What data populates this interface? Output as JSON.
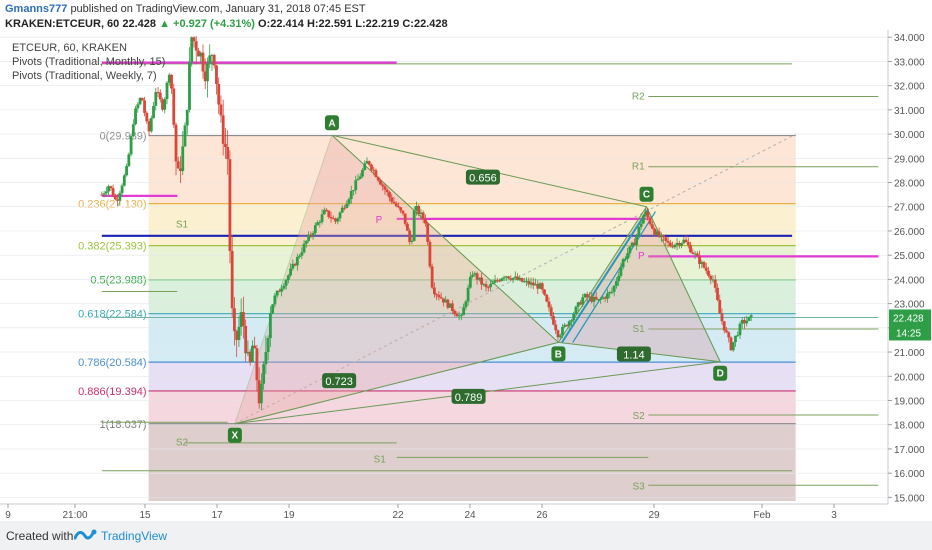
{
  "header": {
    "author": "Gmanns777",
    "published_text": "published on TradingView.com, January 31, 2018 07:45 EST",
    "symbol_line": "KRAKEN:ETCEUR, 60",
    "last": "22.428",
    "change": "▲ +0.927 (+4.31%)",
    "ohlc": "O:22.414 H:22.591 L:22.219 C:22.428"
  },
  "footer": {
    "created_with": "Created with",
    "brand": "TradingView"
  },
  "chart_data": {
    "type": "candlestick",
    "legend": [
      "ETCEUR, 60, KRAKEN",
      "Pivots (Traditional, Monthly, 15)",
      "Pivots (Traditional, Weekly, 7)"
    ],
    "x_ticks": [
      "9",
      "21:00",
      "15",
      "17",
      "19",
      "22",
      "24",
      "26",
      "29",
      "Feb",
      "3"
    ],
    "y_ticks": [
      "15.000",
      "16.000",
      "17.000",
      "18.000",
      "19.000",
      "20.000",
      "21.000",
      "22.000",
      "23.000",
      "24.000",
      "25.000",
      "26.000",
      "27.000",
      "28.000",
      "29.000",
      "30.000",
      "31.000",
      "32.000",
      "33.000",
      "34.000"
    ],
    "ylim": [
      14.85,
      34.05
    ],
    "last_price": "22.428",
    "countdown": "14:25",
    "colors": {
      "up": "#2e9e46",
      "down": "#d9463a",
      "pattern_line": "#6a9a55",
      "pivot_magenta": "#e23bd3",
      "support_blue": "#1a22b5",
      "channel_teal": "#2598b8"
    },
    "fib_levels": [
      {
        "label": "0(29.939)",
        "value": 29.939,
        "color": "#8c8c8c",
        "fill": "#fde3d2"
      },
      {
        "label": "0.236(27.130)",
        "value": 27.13,
        "color": "#e8b14a",
        "fill": "#fbf0cc"
      },
      {
        "label": "0.382(25.393)",
        "value": 25.393,
        "color": "#9bc43a",
        "fill": "#e4f2cf"
      },
      {
        "label": "0.5(23.988)",
        "value": 23.988,
        "color": "#35b24a",
        "fill": "#d6eed8"
      },
      {
        "label": "0.618(22.584)",
        "value": 22.584,
        "color": "#3aa9b7",
        "fill": "#d0e9f3"
      },
      {
        "label": "0.786(20.584)",
        "value": 20.584,
        "color": "#4a8fd2",
        "fill": "#e4dcf2"
      },
      {
        "label": "0.886(19.394)",
        "value": 19.394,
        "color": "#c8326e",
        "fill": "#f3d3dc"
      },
      {
        "label": "1(18.037)",
        "value": 18.037,
        "color": "#7a7a7a",
        "fill": "#dcc9c9"
      }
    ],
    "pattern_points": [
      {
        "label": "X",
        "day": 17.5,
        "price": 18.04
      },
      {
        "label": "A",
        "day": 20.2,
        "price": 29.95
      },
      {
        "label": "B",
        "day": 26.5,
        "price": 21.4
      },
      {
        "label": "C",
        "day": 28.95,
        "price": 27.0
      },
      {
        "label": "D",
        "day": 31.0,
        "price": 20.6
      }
    ],
    "ratios": [
      {
        "label": "0.656",
        "day": 24.4,
        "price": 28.2
      },
      {
        "label": "0.723",
        "day": 20.4,
        "price": 19.8
      },
      {
        "label": "0.789",
        "day": 24.0,
        "price": 19.15
      },
      {
        "label": "1.14",
        "day": 28.6,
        "price": 20.9
      }
    ],
    "pivot_labels": [
      {
        "label": "R2",
        "day": 28.9,
        "price": 31.6
      },
      {
        "label": "R1",
        "day": 28.9,
        "price": 28.7
      },
      {
        "label": "P",
        "day": 28.9,
        "price": 25.0
      },
      {
        "label": "S1",
        "day": 28.9,
        "price": 22.0
      },
      {
        "label": "S2",
        "day": 28.9,
        "price": 18.4
      },
      {
        "label": "S3",
        "day": 28.9,
        "price": 15.5
      },
      {
        "label": "S1",
        "day": 16.2,
        "price": 26.3
      },
      {
        "label": "S2",
        "day": 16.2,
        "price": 17.3
      },
      {
        "label": "S1",
        "day": 21.7,
        "price": 16.6
      },
      {
        "label": "P",
        "day": 21.6,
        "price": 26.5
      }
    ],
    "horizontal_lines": [
      {
        "name": "monthly-pivot-left",
        "price": 32.95,
        "from": 13.8,
        "to": 22.0,
        "color": "#e23bd3",
        "width": 2.2
      },
      {
        "name": "weekly-pivot-left",
        "price": 27.45,
        "from": 13.8,
        "to": 15.9,
        "color": "#e23bd3",
        "width": 2.2
      },
      {
        "name": "weekly-pivot-mid",
        "price": 26.5,
        "from": 22.0,
        "to": 29.0,
        "color": "#e23bd3",
        "width": 2.2
      },
      {
        "name": "weekly-pivot-right",
        "price": 24.95,
        "from": 29.0,
        "to": 35.4,
        "color": "#e23bd3",
        "width": 2.2
      },
      {
        "name": "support-blue",
        "price": 25.8,
        "from": 13.8,
        "to": 33.0,
        "color": "#1a22b5",
        "width": 2.2
      },
      {
        "name": "price-line",
        "price": 22.428,
        "from": 13.8,
        "to": 35.4,
        "color": "#6fb3a0",
        "width": 1
      }
    ],
    "pivot_segments": [
      {
        "price": 32.9,
        "from": 13.8,
        "to": 33.0
      },
      {
        "price": 31.55,
        "from": 29.0,
        "to": 35.4
      },
      {
        "price": 28.65,
        "from": 29.0,
        "to": 35.4
      },
      {
        "price": 23.5,
        "from": 13.8,
        "to": 15.9
      },
      {
        "price": 21.95,
        "from": 29.0,
        "to": 35.4
      },
      {
        "price": 18.4,
        "from": 29.0,
        "to": 35.4
      },
      {
        "price": 18.1,
        "from": 13.8,
        "to": 17.3
      },
      {
        "price": 17.25,
        "from": 16.1,
        "to": 22.0
      },
      {
        "price": 16.65,
        "from": 22.0,
        "to": 29.0
      },
      {
        "price": 16.1,
        "from": 13.8,
        "to": 33.0
      },
      {
        "price": 15.5,
        "from": 29.0,
        "to": 35.4
      }
    ],
    "series_anchors": [
      [
        13.8,
        27.5
      ],
      [
        14.0,
        27.9
      ],
      [
        14.2,
        27.2
      ],
      [
        14.5,
        28.6
      ],
      [
        14.7,
        30.8
      ],
      [
        14.9,
        31.6
      ],
      [
        15.1,
        30.0
      ],
      [
        15.3,
        31.8
      ],
      [
        15.5,
        31.1
      ],
      [
        15.7,
        32.8
      ],
      [
        15.9,
        28.0
      ],
      [
        16.1,
        29.8
      ],
      [
        16.3,
        34.0
      ],
      [
        16.5,
        33.5
      ],
      [
        16.7,
        32.5
      ],
      [
        16.9,
        33.6
      ],
      [
        17.1,
        30.5
      ],
      [
        17.3,
        29.0
      ],
      [
        17.4,
        23.0
      ],
      [
        17.5,
        21.2
      ],
      [
        17.7,
        22.6
      ],
      [
        17.9,
        20.1
      ],
      [
        18.0,
        21.4
      ],
      [
        18.2,
        18.8
      ],
      [
        18.5,
        23.0
      ],
      [
        19.0,
        24.2
      ],
      [
        19.5,
        25.6
      ],
      [
        20.0,
        26.8
      ],
      [
        20.3,
        26.4
      ],
      [
        20.7,
        27.5
      ],
      [
        21.2,
        28.9
      ],
      [
        21.8,
        27.4
      ],
      [
        22.2,
        26.6
      ],
      [
        22.4,
        25.3
      ],
      [
        22.5,
        27.0
      ],
      [
        22.8,
        26.4
      ],
      [
        23.0,
        23.6
      ],
      [
        23.4,
        23.0
      ],
      [
        23.8,
        22.4
      ],
      [
        24.1,
        24.3
      ],
      [
        24.5,
        23.6
      ],
      [
        25.0,
        24.2
      ],
      [
        25.5,
        23.9
      ],
      [
        26.0,
        23.7
      ],
      [
        26.5,
        21.7
      ],
      [
        26.8,
        22.3
      ],
      [
        27.2,
        23.3
      ],
      [
        27.6,
        23.1
      ],
      [
        28.0,
        23.5
      ],
      [
        28.3,
        24.8
      ],
      [
        28.6,
        25.5
      ],
      [
        28.9,
        26.8
      ],
      [
        29.2,
        25.9
      ],
      [
        29.6,
        25.4
      ],
      [
        30.0,
        25.6
      ],
      [
        30.4,
        24.8
      ],
      [
        30.8,
        24.0
      ],
      [
        31.0,
        22.5
      ],
      [
        31.3,
        21.2
      ],
      [
        31.6,
        22.2
      ],
      [
        31.9,
        22.43
      ]
    ]
  }
}
